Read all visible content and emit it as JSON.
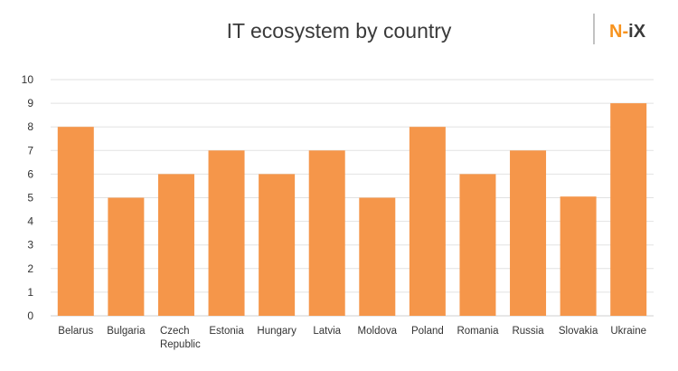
{
  "chart_data": {
    "type": "bar",
    "title": "IT ecosystem by country",
    "xlabel": "",
    "ylabel": "",
    "categories": [
      [
        "Belarus"
      ],
      [
        "Bulgaria"
      ],
      [
        "Czech",
        "Republic"
      ],
      [
        "Estonia"
      ],
      [
        "Hungary"
      ],
      [
        "Latvia"
      ],
      [
        "Moldova"
      ],
      [
        "Poland"
      ],
      [
        "Romania"
      ],
      [
        "Russia"
      ],
      [
        "Slovakia"
      ],
      [
        "Ukraine"
      ]
    ],
    "values": [
      8,
      5,
      6,
      7,
      6,
      7,
      5,
      8,
      6,
      7,
      5.05,
      9
    ],
    "ylim": [
      0,
      10
    ],
    "yticks": [
      "0",
      "1",
      "2",
      "3",
      "4",
      "5",
      "6",
      "7",
      "8",
      "9",
      "10"
    ],
    "grid": true,
    "bar_color": "#f5964a",
    "legend": "none"
  },
  "logo": {
    "text_n": "N",
    "text_dash": "-",
    "text_i": "i",
    "text_x": "X",
    "color_n": "#f7931e",
    "color_rest": "#3a3a3a"
  }
}
